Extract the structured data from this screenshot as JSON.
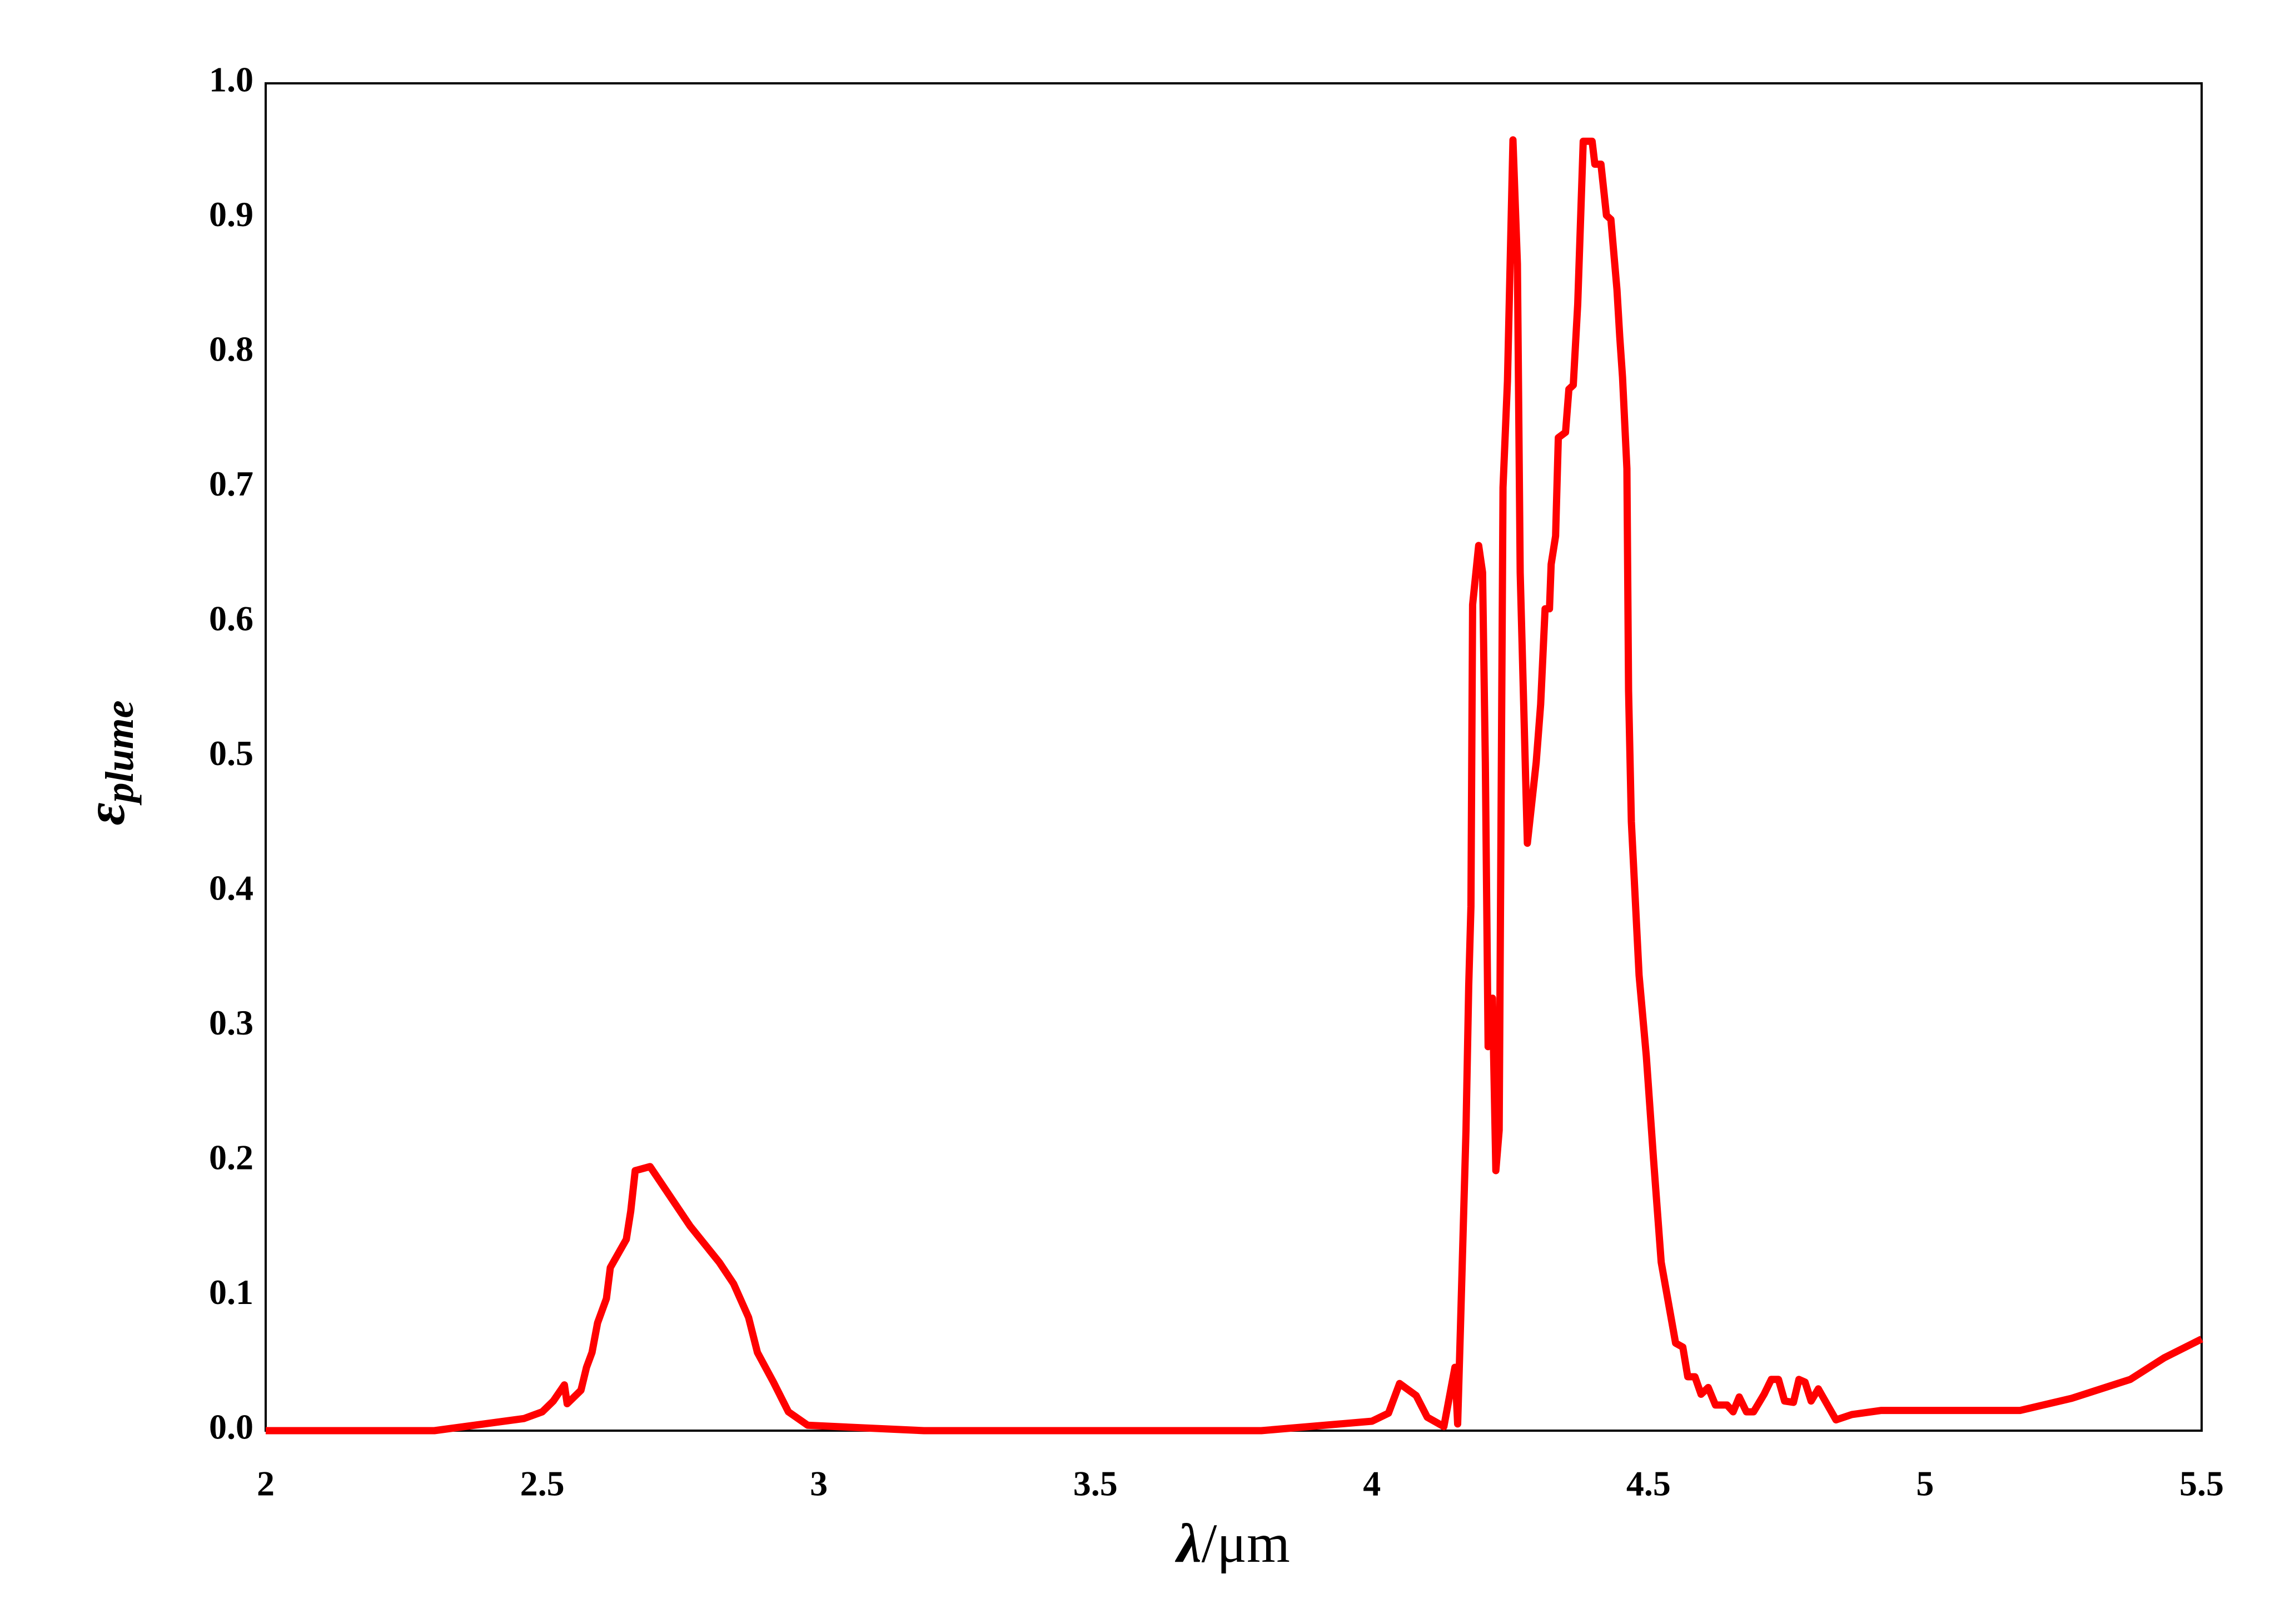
{
  "chart_data": {
    "type": "line",
    "ylabel": "ε",
    "ylabel_sub": "plume",
    "xlabel": "λ",
    "xlabel_unit": "/μm",
    "x": [
      2.0,
      2.305,
      2.467,
      2.5,
      2.52,
      2.54,
      2.545,
      2.57,
      2.58,
      2.59,
      2.6,
      2.616,
      2.623,
      2.652,
      2.66,
      2.668,
      2.695,
      2.767,
      2.82,
      2.846,
      2.873,
      2.889,
      2.918,
      2.945,
      2.98,
      3.19,
      3.8,
      4.0,
      4.03,
      4.05,
      4.08,
      4.1,
      4.13,
      4.15,
      4.155,
      4.16,
      4.17,
      4.175,
      4.179,
      4.182,
      4.193,
      4.2,
      4.205,
      4.21,
      4.218,
      4.224,
      4.23,
      4.237,
      4.245,
      4.255,
      4.263,
      4.268,
      4.281,
      4.297,
      4.305,
      4.313,
      4.321,
      4.324,
      4.332,
      4.337,
      4.35,
      4.356,
      4.364,
      4.372,
      4.382,
      4.398,
      4.403,
      4.414,
      4.424,
      4.432,
      4.443,
      4.448,
      4.453,
      4.461,
      4.464,
      4.469,
      4.483,
      4.496,
      4.509,
      4.523,
      4.549,
      4.562,
      4.571,
      4.584,
      4.595,
      4.608,
      4.621,
      4.642,
      4.653,
      4.664,
      4.677,
      4.69,
      4.709,
      4.722,
      4.735,
      4.746,
      4.762,
      4.772,
      4.783,
      4.794,
      4.807,
      4.839,
      4.868,
      4.921,
      5.172,
      5.265,
      5.371,
      5.432,
      5.5
    ],
    "series": [
      {
        "name": "plume",
        "color": "#ff0000",
        "values": [
          0,
          0,
          0.009,
          0.014,
          0.022,
          0.034,
          0.02,
          0.03,
          0.047,
          0.058,
          0.08,
          0.098,
          0.121,
          0.142,
          0.163,
          0.193,
          0.196,
          0.152,
          0.125,
          0.109,
          0.084,
          0.058,
          0.036,
          0.014,
          0.004,
          0,
          0,
          0.007,
          0.013,
          0.035,
          0.026,
          0.01,
          0.003,
          0.047,
          0.005,
          0.076,
          0.223,
          0.33,
          0.389,
          0.613,
          0.657,
          0.637,
          0.496,
          0.285,
          0.321,
          0.193,
          0.223,
          0.7,
          0.779,
          0.958,
          0.866,
          0.637,
          0.436,
          0.496,
          0.539,
          0.61,
          0.61,
          0.643,
          0.664,
          0.737,
          0.741,
          0.773,
          0.776,
          0.836,
          0.957,
          0.957,
          0.94,
          0.94,
          0.902,
          0.899,
          0.847,
          0.812,
          0.782,
          0.714,
          0.549,
          0.452,
          0.338,
          0.278,
          0.202,
          0.125,
          0.065,
          0.062,
          0.04,
          0.04,
          0.027,
          0.032,
          0.019,
          0.019,
          0.014,
          0.025,
          0.014,
          0.014,
          0.027,
          0.038,
          0.038,
          0.022,
          0.021,
          0.038,
          0.036,
          0.022,
          0.031,
          0.008,
          0.012,
          0.015,
          0.015,
          0.024,
          0.038,
          0.054,
          0.068
        ]
      }
    ],
    "xlim": [
      2,
      5.5
    ],
    "xticks": [
      2,
      2.5,
      3,
      3.5,
      4,
      4.5,
      5,
      5.5
    ],
    "ylim": [
      0,
      1
    ],
    "yticks": [
      {
        "value": 0,
        "label": "0.0"
      },
      0.1,
      0.2,
      0.3,
      0.4,
      0.5,
      0.6,
      0.7,
      0.8,
      0.9,
      {
        "value": 1,
        "label": "1.0"
      }
    ],
    "grid": false
  }
}
